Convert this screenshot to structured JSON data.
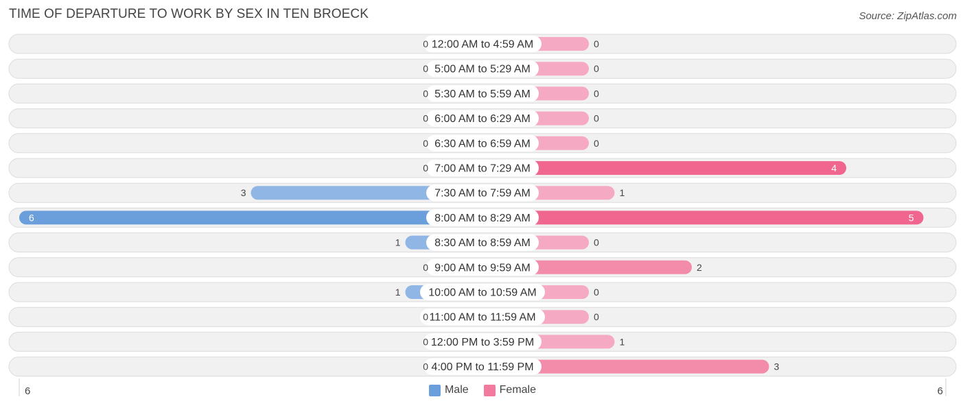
{
  "header": {
    "title": "TIME OF DEPARTURE TO WORK BY SEX IN TEN BROECK",
    "source": "Source: ZipAtlas.com"
  },
  "colors": {
    "male_light": "#a8c8ea",
    "male_strong": "#6a9fdb",
    "female_light": "#f5a9c2",
    "female_strong": "#f0668f",
    "row_bg": "#f1f1f1",
    "row_border": "#dcdcdc"
  },
  "axis": {
    "left_label": "6",
    "right_label": "6"
  },
  "legend": [
    {
      "label": "Male",
      "color": "#6a9fdb"
    },
    {
      "label": "Female",
      "color": "#f27a9f"
    }
  ],
  "chart_data": {
    "type": "bar",
    "orientation": "horizontal-diverging",
    "title": "TIME OF DEPARTURE TO WORK BY SEX IN TEN BROECK",
    "xlim": [
      -6,
      6
    ],
    "categories": [
      "12:00 AM to 4:59 AM",
      "5:00 AM to 5:29 AM",
      "5:30 AM to 5:59 AM",
      "6:00 AM to 6:29 AM",
      "6:30 AM to 6:59 AM",
      "7:00 AM to 7:29 AM",
      "7:30 AM to 7:59 AM",
      "8:00 AM to 8:29 AM",
      "8:30 AM to 8:59 AM",
      "9:00 AM to 9:59 AM",
      "10:00 AM to 10:59 AM",
      "11:00 AM to 11:59 AM",
      "12:00 PM to 3:59 PM",
      "4:00 PM to 11:59 PM"
    ],
    "series": [
      {
        "name": "Male",
        "values": [
          0,
          0,
          0,
          0,
          0,
          0,
          3,
          6,
          1,
          0,
          1,
          0,
          0,
          0
        ]
      },
      {
        "name": "Female",
        "values": [
          0,
          0,
          0,
          0,
          0,
          4,
          1,
          5,
          0,
          2,
          0,
          0,
          1,
          3
        ]
      }
    ],
    "legend_position": "bottom-center"
  }
}
